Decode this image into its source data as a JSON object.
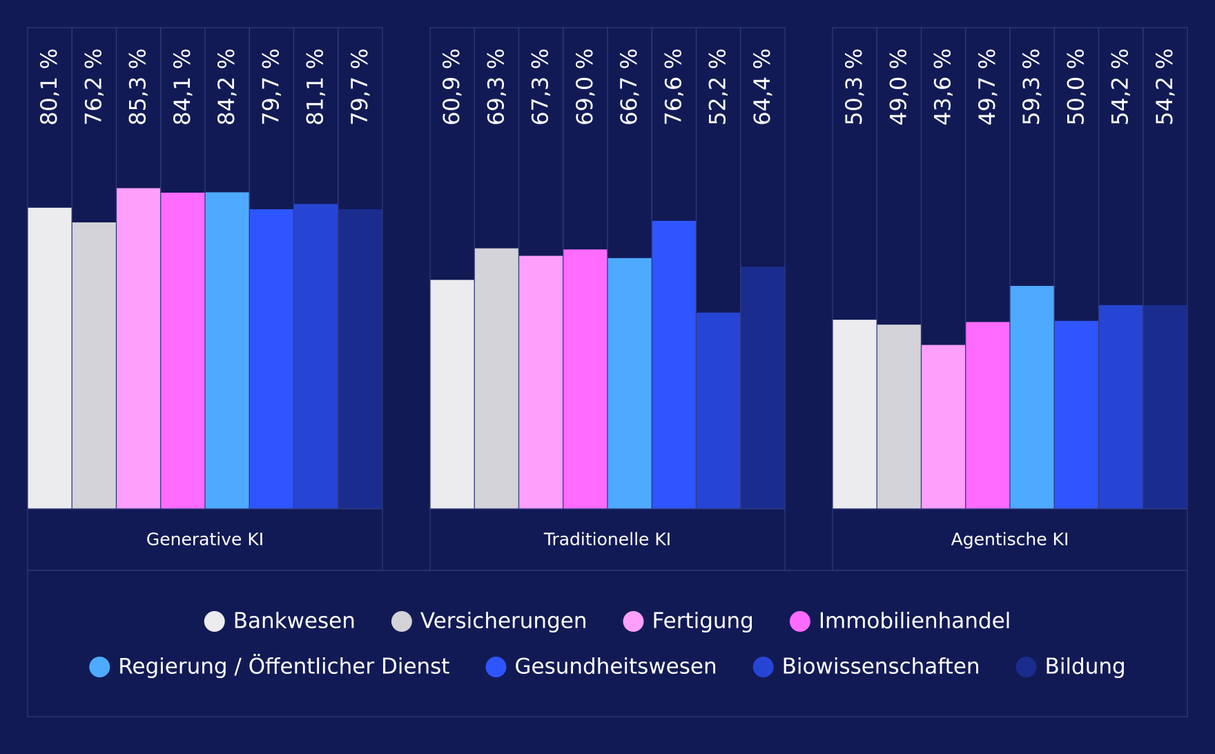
{
  "chart_data": {
    "type": "bar",
    "categories": [
      "Generative KI",
      "Traditionelle KI",
      "Agentische KI"
    ],
    "ylim": [
      0,
      128
    ],
    "series": [
      {
        "name": "Bankwesen",
        "color": "#ececef",
        "values": [
          80.1,
          60.9,
          50.3
        ],
        "value_labels": [
          "80,1 %",
          "60,9 %",
          "50,3 %"
        ]
      },
      {
        "name": "Versicherungen",
        "color": "#d3d3d8",
        "values": [
          76.2,
          69.3,
          49.0
        ],
        "value_labels": [
          "76,2 %",
          "69,3 %",
          "49,0 %"
        ]
      },
      {
        "name": "Fertigung",
        "color": "#ff9ffc",
        "values": [
          85.3,
          67.3,
          43.6
        ],
        "value_labels": [
          "85,3 %",
          "67,3 %",
          "43,6 %"
        ]
      },
      {
        "name": "Immobilienhandel",
        "color": "#ff6bfd",
        "values": [
          84.1,
          69.0,
          49.7
        ],
        "value_labels": [
          "84,1 %",
          "69,0 %",
          "49,7 %"
        ]
      },
      {
        "name": "Regierung / Öffentlicher Dienst",
        "color": "#4eaaff",
        "values": [
          84.2,
          66.7,
          59.3
        ],
        "value_labels": [
          "84,2 %",
          "66,7 %",
          "59,3 %"
        ]
      },
      {
        "name": "Gesundheitswesen",
        "color": "#2e55ff",
        "values": [
          79.7,
          76.6,
          50.0
        ],
        "value_labels": [
          "79,7 %",
          "76,6 %",
          "50,0 %"
        ]
      },
      {
        "name": "Biowissenschaften",
        "color": "#2745d4",
        "values": [
          81.1,
          52.2,
          54.2
        ],
        "value_labels": [
          "81,1 %",
          "52,2 %",
          "54,2 %"
        ]
      },
      {
        "name": "Bildung",
        "color": "#1a2d8f",
        "values": [
          79.7,
          64.4,
          54.2
        ],
        "value_labels": [
          "79,7 %",
          "64,4 %",
          "54,2 %"
        ]
      }
    ]
  }
}
